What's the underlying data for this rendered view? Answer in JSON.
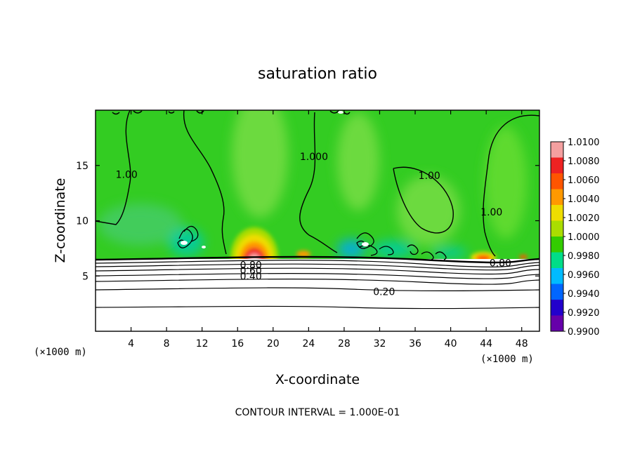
{
  "chart_data": {
    "type": "heatmap",
    "title": "saturation ratio",
    "xlabel": "X-coordinate",
    "ylabel": "Z-coordinate",
    "x_unit": "(×1000 m)",
    "y_unit": "(×1000 m)",
    "xlim": [
      0,
      50
    ],
    "ylim": [
      0,
      20
    ],
    "x_ticks": [
      4,
      8,
      12,
      16,
      20,
      24,
      28,
      32,
      36,
      40,
      44,
      48
    ],
    "y_ticks": [
      5,
      10,
      15
    ],
    "colorbar": {
      "levels": [
        "1.0100",
        "1.0080",
        "1.0060",
        "1.0040",
        "1.0020",
        "1.0000",
        "0.9980",
        "0.9960",
        "0.9940",
        "0.9920",
        "0.9900"
      ],
      "colors": [
        "#f4a0a0",
        "#ee2222",
        "#ff5500",
        "#ff9900",
        "#eedd00",
        "#aadd00",
        "#33cc00",
        "#00dd88",
        "#00bbff",
        "#0066ff",
        "#2200cc",
        "#6600aa"
      ]
    },
    "contour_labels": [
      {
        "text": "1.00",
        "x": 3.5,
        "z": 14.2
      },
      {
        "text": "1.000",
        "x": 24.6,
        "z": 15.8
      },
      {
        "text": "1.00",
        "x": 37.6,
        "z": 14.1
      },
      {
        "text": "1.00",
        "x": 44.6,
        "z": 10.8
      },
      {
        "text": "0.80",
        "x": 17.5,
        "z": 6.0
      },
      {
        "text": "0.60",
        "x": 17.5,
        "z": 5.5
      },
      {
        "text": "0.40",
        "x": 17.5,
        "z": 5.0
      },
      {
        "text": "0.80",
        "x": 45.6,
        "z": 6.2
      },
      {
        "text": "0.20",
        "x": 32.5,
        "z": 3.6
      }
    ],
    "footer": "CONTOUR INTERVAL = 1.000E-01"
  }
}
